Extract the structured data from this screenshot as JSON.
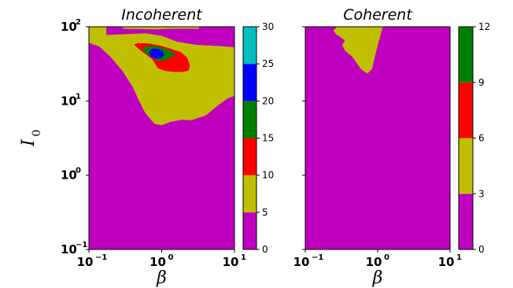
{
  "chart_data": [
    {
      "type": "contour",
      "title": "Incoherent",
      "xlabel": "β",
      "ylabel": "I",
      "ylabel_sub": "0",
      "xscale": "log",
      "yscale": "log",
      "xlim": [
        0.1,
        10
      ],
      "ylim": [
        0.1,
        100
      ],
      "x_ticks": [
        {
          "base": "10",
          "exp": "−1",
          "value": 0.1
        },
        {
          "base": "10",
          "exp": "0",
          "value": 1
        },
        {
          "base": "10",
          "exp": "1",
          "value": 10
        }
      ],
      "y_ticks": [
        {
          "base": "10",
          "exp": "−1",
          "value": 0.1
        },
        {
          "base": "10",
          "exp": "0",
          "value": 1
        },
        {
          "base": "10",
          "exp": "1",
          "value": 10
        },
        {
          "base": "10",
          "exp": "2",
          "value": 100
        }
      ],
      "colorbar": {
        "levels": [
          0,
          5,
          10,
          15,
          20,
          25,
          30
        ],
        "tick_labels": [
          "0",
          "5",
          "10",
          "15",
          "20",
          "25",
          "30"
        ],
        "colors": [
          "#bf00bf",
          "#bfbf00",
          "#ff0000",
          "#008000",
          "#0000ff",
          "#00bfbf"
        ]
      },
      "regions": [
        {
          "level_index": 1,
          "range": [
            5,
            10
          ],
          "polygon": [
            [
              0.1,
              100
            ],
            [
              0.17,
              100
            ],
            [
              0.17,
              76
            ],
            [
              0.6,
              80
            ],
            [
              1.0,
              74
            ],
            [
              1.6,
              62
            ],
            [
              3.0,
              56
            ],
            [
              6.0,
              54
            ],
            [
              10,
              52
            ],
            [
              10,
              12
            ],
            [
              8.0,
              11
            ],
            [
              6.0,
              9
            ],
            [
              4.0,
              6.5
            ],
            [
              2.5,
              5.6
            ],
            [
              1.9,
              5.7
            ],
            [
              1.3,
              5.3
            ],
            [
              1.0,
              4.8
            ],
            [
              0.8,
              5.0
            ],
            [
              0.6,
              7
            ],
            [
              0.5,
              10
            ],
            [
              0.4,
              16
            ],
            [
              0.3,
              25
            ],
            [
              0.2,
              40
            ],
            [
              0.14,
              55
            ],
            [
              0.1,
              62
            ]
          ]
        },
        {
          "level_index": 1,
          "range": [
            5,
            10
          ],
          "polygon": [
            [
              0.3,
              100
            ],
            [
              3.2,
              100
            ],
            [
              3.2,
              96
            ],
            [
              1.5,
              96
            ],
            [
              0.8,
              94
            ],
            [
              0.3,
              96
            ]
          ]
        },
        {
          "level_index": 2,
          "range": [
            10,
            15
          ],
          "polygon": [
            [
              0.43,
              57
            ],
            [
              0.5,
              50
            ],
            [
              0.75,
              37
            ],
            [
              0.9,
              28
            ],
            [
              1.1,
              26
            ],
            [
              1.5,
              25
            ],
            [
              1.9,
              25
            ],
            [
              2.3,
              26
            ],
            [
              2.4,
              30
            ],
            [
              2.2,
              38
            ],
            [
              1.8,
              45
            ],
            [
              1.3,
              50
            ],
            [
              1.0,
              54
            ],
            [
              0.7,
              58
            ],
            [
              0.55,
              59
            ],
            [
              0.47,
              59
            ]
          ]
        },
        {
          "level_index": 3,
          "range": [
            15,
            20
          ],
          "polygon": [
            [
              0.55,
              50
            ],
            [
              0.62,
              44
            ],
            [
              0.72,
              40
            ],
            [
              0.85,
              36
            ],
            [
              1.1,
              36
            ],
            [
              1.35,
              39
            ],
            [
              1.5,
              42
            ],
            [
              1.35,
              46
            ],
            [
              1.1,
              50
            ],
            [
              0.9,
              53
            ],
            [
              0.7,
              54
            ],
            [
              0.6,
              53
            ]
          ]
        },
        {
          "level_index": 4,
          "range": [
            20,
            25
          ],
          "polygon": [
            [
              0.68,
              45
            ],
            [
              0.72,
              40
            ],
            [
              0.82,
              38
            ],
            [
              0.95,
              38
            ],
            [
              1.05,
              41
            ],
            [
              1.02,
              46
            ],
            [
              0.92,
              49
            ],
            [
              0.8,
              50
            ],
            [
              0.72,
              49
            ]
          ]
        }
      ]
    },
    {
      "type": "contour",
      "title": "Coherent",
      "xlabel": "β",
      "xscale": "log",
      "yscale": "log",
      "xlim": [
        0.1,
        10
      ],
      "ylim": [
        0.1,
        100
      ],
      "x_ticks": [
        {
          "base": "10",
          "exp": "−1",
          "value": 0.1
        },
        {
          "base": "10",
          "exp": "0",
          "value": 1
        },
        {
          "base": "10",
          "exp": "1",
          "value": 10
        }
      ],
      "y_ticks": [
        {
          "base": "",
          "exp": "",
          "value": 0.1
        },
        {
          "base": "",
          "exp": "",
          "value": 1
        },
        {
          "base": "",
          "exp": "",
          "value": 10
        },
        {
          "base": "",
          "exp": "",
          "value": 100
        }
      ],
      "colorbar": {
        "levels": [
          0,
          3,
          6,
          9,
          12
        ],
        "tick_labels": [
          "0",
          "3",
          "6",
          "9",
          "12"
        ],
        "colors": [
          "#bf00bf",
          "#bfbf00",
          "#ff0000",
          "#008000"
        ]
      },
      "regions": [
        {
          "level_index": 1,
          "range": [
            3,
            6
          ],
          "polygon": [
            [
              0.28,
              100
            ],
            [
              1.15,
              100
            ],
            [
              1.1,
              84
            ],
            [
              1.0,
              60
            ],
            [
              0.9,
              40
            ],
            [
              0.82,
              27
            ],
            [
              0.72,
              24
            ],
            [
              0.6,
              27
            ],
            [
              0.45,
              40
            ],
            [
              0.36,
              48
            ],
            [
              0.33,
              57
            ],
            [
              0.36,
              65
            ],
            [
              0.32,
              72
            ],
            [
              0.27,
              80
            ],
            [
              0.25,
              88
            ]
          ]
        }
      ]
    }
  ]
}
